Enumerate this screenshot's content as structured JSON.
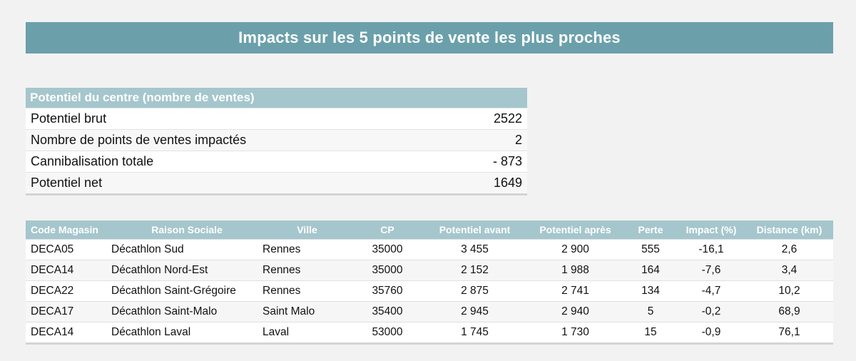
{
  "title": "Impacts sur les 5 points de vente les plus proches",
  "summary": {
    "header": "Potentiel du centre (nombre de ventes)",
    "rows": [
      {
        "label": "Potentiel brut",
        "value": "2522"
      },
      {
        "label": "Nombre de points de ventes impactés",
        "value": "2"
      },
      {
        "label": "Cannibalisation totale",
        "value": "- 873"
      },
      {
        "label": "Potentiel net",
        "value": "1649"
      }
    ]
  },
  "stores": {
    "columns": [
      "Code Magasin",
      "Raison Sociale",
      "Ville",
      "CP",
      "Potentiel avant",
      "Potentiel après",
      "Perte",
      "Impact (%)",
      "Distance (km)"
    ],
    "rows": [
      [
        "DECA05",
        "Décathlon Sud",
        "Rennes",
        "35000",
        "3 455",
        "2 900",
        "555",
        "-16,1",
        "2,6"
      ],
      [
        "DECA14",
        "Décathlon Nord-Est",
        "Rennes",
        "35000",
        "2 152",
        "1 988",
        "164",
        "-7,6",
        "3,4"
      ],
      [
        "DECA22",
        "Décathlon Saint-Grégoire",
        "Rennes",
        "35760",
        "2 875",
        "2 741",
        "134",
        "-4,7",
        "10,2"
      ],
      [
        "DECA17",
        "Décathlon Saint-Malo",
        "Saint Malo",
        "35400",
        "2 945",
        "2 940",
        "5",
        "-0,2",
        "68,9"
      ],
      [
        "DECA14",
        "Décathlon Laval",
        "Laval",
        "53000",
        "1 745",
        "1 730",
        "15",
        "-0,9",
        "76,1"
      ]
    ]
  },
  "colors": {
    "title_bar": "#6ba0ab",
    "table_header": "#a5c6cd",
    "background": "#f2f2f2"
  }
}
